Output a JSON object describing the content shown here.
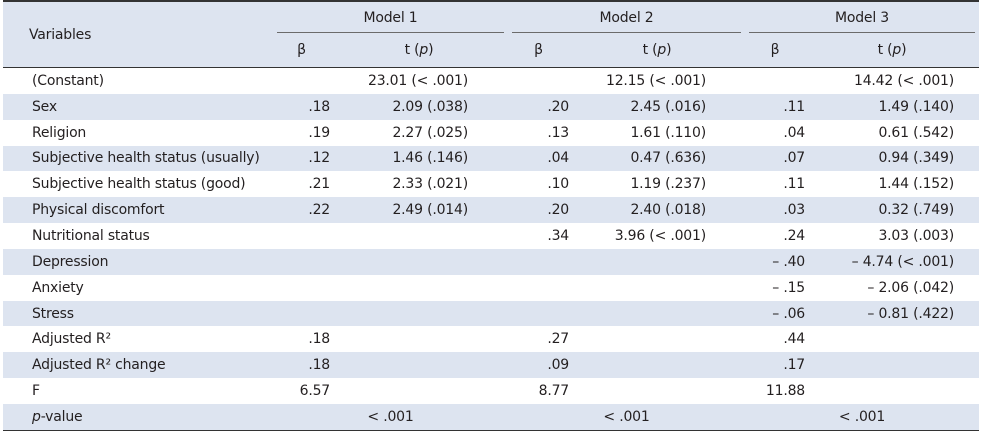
{
  "header": {
    "variables": "Variables",
    "models": [
      "Model 1",
      "Model 2",
      "Model 3"
    ],
    "beta": "β",
    "t": "t (",
    "p": "p",
    "t_close": ")"
  },
  "rows": [
    {
      "label": "(Constant)",
      "b1": "",
      "t1": "23.01 (< .001)",
      "b2": "",
      "t2": "12.15 (< .001)",
      "b3": "",
      "t3": "14.42 (< .001)"
    },
    {
      "label": "Sex",
      "b1": ".18",
      "t1": "2.09 (.038)",
      "b2": ".20",
      "t2": "2.45 (.016)",
      "b3": ".11",
      "t3": "1.49 (.140)"
    },
    {
      "label": "Religion",
      "b1": ".19",
      "t1": "2.27 (.025)",
      "b2": ".13",
      "t2": "1.61 (.110)",
      "b3": ".04",
      "t3": "0.61 (.542)"
    },
    {
      "label": "Subjective health status (usually)",
      "b1": ".12",
      "t1": "1.46 (.146)",
      "b2": ".04",
      "t2": "0.47 (.636)",
      "b3": ".07",
      "t3": "0.94 (.349)"
    },
    {
      "label": "Subjective health status (good)",
      "b1": ".21",
      "t1": "2.33 (.021)",
      "b2": ".10",
      "t2": "1.19 (.237)",
      "b3": ".11",
      "t3": "1.44 (.152)"
    },
    {
      "label": "Physical discomfort",
      "b1": ".22",
      "t1": "2.49 (.014)",
      "b2": ".20",
      "t2": "2.40 (.018)",
      "b3": ".03",
      "t3": "0.32 (.749)"
    },
    {
      "label": "Nutritional status",
      "b1": "",
      "t1": "",
      "b2": ".34",
      "t2": "3.96 (< .001)",
      "b3": ".24",
      "t3": "3.03 (.003)"
    },
    {
      "label": "Depression",
      "b1": "",
      "t1": "",
      "b2": "",
      "t2": "",
      "b3": "– .40",
      "t3": "– 4.74 (< .001)"
    },
    {
      "label": "Anxiety",
      "b1": "",
      "t1": "",
      "b2": "",
      "t2": "",
      "b3": "– .15",
      "t3": "– 2.06 (.042)"
    },
    {
      "label": "Stress",
      "b1": "",
      "t1": "",
      "b2": "",
      "t2": "",
      "b3": "– .06",
      "t3": "– 0.81 (.422)"
    },
    {
      "label": "Adjusted R²",
      "b1": ".18",
      "t1": "",
      "b2": ".27",
      "t2": "",
      "b3": ".44",
      "t3": ""
    },
    {
      "label": "Adjusted R² change",
      "b1": ".18",
      "t1": "",
      "b2": ".09",
      "t2": "",
      "b3": ".17",
      "t3": ""
    },
    {
      "label": "F",
      "b1": "6.57",
      "t1": "",
      "b2": "8.77",
      "t2": "",
      "b3": "11.88",
      "t3": ""
    }
  ],
  "pvalue_row": {
    "label_italic": "p",
    "label_rest": "-value",
    "v1": "< .001",
    "v2": "< .001",
    "v3": "< .001"
  }
}
